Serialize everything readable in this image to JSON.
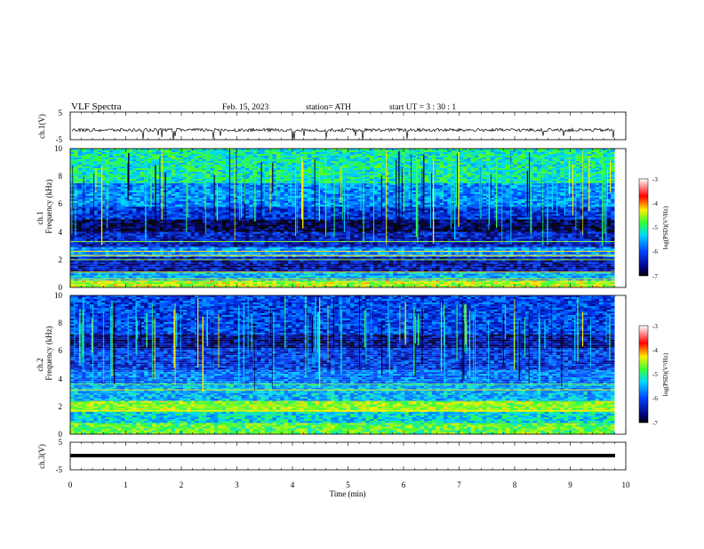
{
  "header": {
    "title": "VLF  Spectra",
    "date": "Feb. 15, 2023",
    "station": "station= ATH",
    "start_ut": "start  UT  =    3  : 30 : 1"
  },
  "panels": {
    "ch1_wave": {
      "ylabel": "ch.1(V)",
      "yticks": [
        "5",
        "-5"
      ]
    },
    "ch1_spec": {
      "ylabel_ch": "ch.1",
      "ylabel": "Frequency  (kHz)",
      "yticks": [
        "0",
        "2",
        "4",
        "6",
        "8",
        "10"
      ]
    },
    "ch2_spec": {
      "ylabel_ch": "ch.2",
      "ylabel": "Frequency  (kHz)",
      "yticks": [
        "0",
        "2",
        "4",
        "6",
        "8",
        "10"
      ]
    },
    "ch3_wave": {
      "ylabel": "ch.3(V)",
      "yticks": [
        "5",
        "-5"
      ]
    }
  },
  "xaxis": {
    "label": "Time  (min)",
    "ticks": [
      "0",
      "1",
      "2",
      "3",
      "4",
      "5",
      "6",
      "7",
      "8",
      "9",
      "10"
    ]
  },
  "colorbar": {
    "label": "log(PSD)(V²/Hz)",
    "ticks": [
      "-3",
      "-4",
      "-5",
      "-6",
      "-7"
    ]
  },
  "colors": {
    "dark_blue": "#00007a",
    "blue": "#0033ff",
    "cyan": "#00d8ff",
    "green": "#33ff33",
    "yellow": "#ffee00",
    "red": "#ff0000"
  },
  "chart_data": [
    {
      "type": "line",
      "name": "ch.1 waveform",
      "x": [
        0,
        10
      ],
      "ylim": [
        -5,
        5
      ],
      "xlim": [
        0,
        10
      ],
      "approx_mean_v": -1.5,
      "note_values": "noisy waveform hovering near -1.5 V with occasional negative spikes"
    },
    {
      "type": "heatmap",
      "name": "ch.1 spectrogram",
      "xlabel": "Time  (min)",
      "ylabel": "Frequency  (kHz)",
      "xlim": [
        0,
        10
      ],
      "ylim": [
        0,
        10
      ],
      "data_end_min": 9.8,
      "bands_khz": [
        {
          "from": 0,
          "to": 0.5,
          "level": -4.5
        },
        {
          "from": 0.5,
          "to": 1.1,
          "level": -5.6
        },
        {
          "from": 1.1,
          "to": 2.2,
          "level": -6.6
        },
        {
          "from": 2.2,
          "to": 2.9,
          "level": -5.8
        },
        {
          "from": 2.9,
          "to": 4.0,
          "level": -6.5
        },
        {
          "from": 4.0,
          "to": 4.9,
          "level": -6.9
        },
        {
          "from": 4.9,
          "to": 5.8,
          "level": -6.3
        },
        {
          "from": 5.8,
          "to": 7.5,
          "level": -5.8
        },
        {
          "from": 7.5,
          "to": 10.0,
          "level": -5.2
        }
      ],
      "lines_khz": [
        0.6,
        1.1,
        2.0,
        2.3,
        2.6,
        3.3
      ],
      "colorbar_range": [
        -7,
        -3
      ]
    },
    {
      "type": "heatmap",
      "name": "ch.2 spectrogram",
      "xlabel": "Time  (min)",
      "ylabel": "Frequency  (kHz)",
      "xlim": [
        0,
        10
      ],
      "ylim": [
        0,
        10
      ],
      "data_end_min": 9.8,
      "bands_khz": [
        {
          "from": 0,
          "to": 0.8,
          "level": -4.8
        },
        {
          "from": 0.8,
          "to": 1.6,
          "level": -5.4
        },
        {
          "from": 1.6,
          "to": 2.4,
          "level": -4.6
        },
        {
          "from": 2.4,
          "to": 3.6,
          "level": -5.6
        },
        {
          "from": 3.6,
          "to": 4.6,
          "level": -5.9
        },
        {
          "from": 4.6,
          "to": 6.2,
          "level": -6.3
        },
        {
          "from": 6.2,
          "to": 7.2,
          "level": -6.7
        },
        {
          "from": 7.2,
          "to": 10.0,
          "level": -6.2
        }
      ],
      "lines_khz": [
        1.7,
        2.0,
        3.2,
        3.6
      ],
      "colorbar_range": [
        -7,
        -3
      ]
    },
    {
      "type": "line",
      "name": "ch.3 waveform",
      "xlim": [
        0,
        10
      ],
      "ylim": [
        -5,
        5
      ],
      "approx_mean_v": -1.5,
      "note_values": "nearly constant thick trace near -1.5 V"
    }
  ]
}
